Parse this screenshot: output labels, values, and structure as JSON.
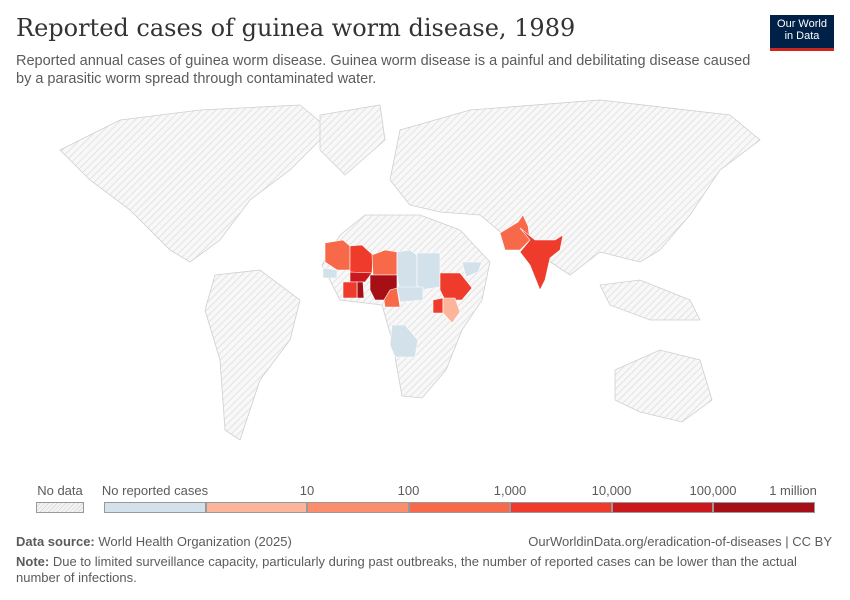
{
  "header": {
    "title": "Reported cases of guinea worm disease, 1989",
    "subtitle": "Reported annual cases of guinea worm disease. Guinea worm disease is a painful and debilitating disease caused by a parasitic worm spread through contaminated water.",
    "logo_line1": "Our World",
    "logo_line2": "in Data"
  },
  "legend": {
    "no_data": "No data",
    "no_cases": "No reported cases",
    "ticks": [
      "10",
      "100",
      "1,000",
      "10,000",
      "100,000",
      "1 million"
    ],
    "colors": {
      "no_data": "#eeeeee",
      "no_cases": "#d2e1ea",
      "bins": [
        "#fcb59a",
        "#fc8d6d",
        "#f8694a",
        "#ef3b2c",
        "#cb181d",
        "#a50f15"
      ]
    }
  },
  "map": {
    "countries": [
      {
        "name": "Mauritania",
        "bin": "100-1,000"
      },
      {
        "name": "Mali",
        "bin": "1,000-10,000"
      },
      {
        "name": "Niger",
        "bin": "100-1,000"
      },
      {
        "name": "Chad",
        "bin": "No reported cases"
      },
      {
        "name": "Sudan",
        "bin": "No reported cases"
      },
      {
        "name": "Senegal",
        "bin": "No reported cases"
      },
      {
        "name": "Burkina Faso",
        "bin": "10,000-100,000"
      },
      {
        "name": "Ghana",
        "bin": "100,000-1 million"
      },
      {
        "name": "Côte d'Ivoire",
        "bin": "1,000-10,000"
      },
      {
        "name": "Nigeria",
        "bin": "100,000-1 million"
      },
      {
        "name": "Cameroon",
        "bin": "100-1,000"
      },
      {
        "name": "Central African Republic",
        "bin": "No reported cases"
      },
      {
        "name": "Ethiopia",
        "bin": "1,000-10,000"
      },
      {
        "name": "Yemen",
        "bin": "No reported cases"
      },
      {
        "name": "Uganda",
        "bin": "1,000-10,000"
      },
      {
        "name": "Kenya",
        "bin": "1-10"
      },
      {
        "name": "Angola",
        "bin": "No reported cases"
      },
      {
        "name": "Pakistan",
        "bin": "100-1,000"
      },
      {
        "name": "India",
        "bin": "1,000-10,000"
      }
    ]
  },
  "footer": {
    "source_label": "Data source:",
    "source": "World Health Organization (2025)",
    "url": "OurWorldinData.org/eradication-of-diseases | CC BY",
    "note_label": "Note:",
    "note": "Due to limited surveillance capacity, particularly during past outbreaks, the number of reported cases can be lower than the actual number of infections."
  }
}
